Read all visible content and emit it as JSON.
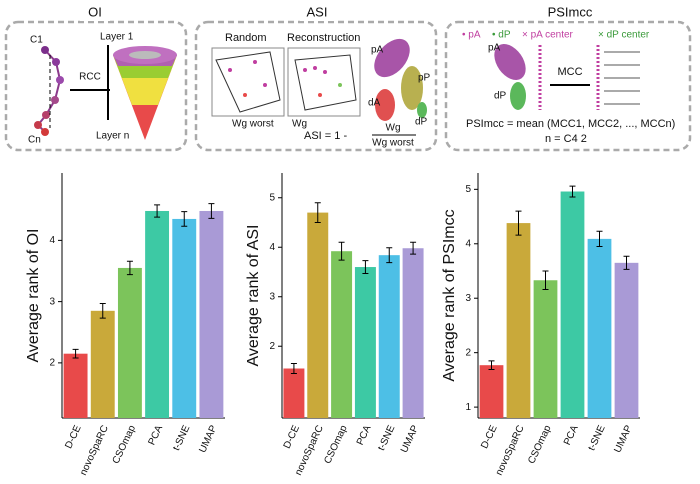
{
  "diagrams": {
    "oi": {
      "title": "OI",
      "start": "C1",
      "end": "Cn",
      "method": "RCC",
      "top_layer": "Layer 1",
      "bottom_layer": "Layer n"
    },
    "asi": {
      "title": "ASI",
      "random": "Random",
      "reconstruction": "Reconstruction",
      "pA": "pA",
      "dA": "dA",
      "pP": "pP",
      "dP": "dP",
      "w_random": "Wg worst",
      "w_recon": "Wg",
      "formula": "ASI = 1 -",
      "numerator": "Wg",
      "denominator": "Wg worst"
    },
    "psimcc": {
      "title": "PSImcc",
      "legend": [
        "• pA",
        "• dP",
        "× pA center",
        "× dP center"
      ],
      "pA": "pA",
      "dP": "dP",
      "method": "MCC",
      "formula": "PSImcc = mean (MCC1, MCC2, ..., MCCn)",
      "n_def": "n = C4 2"
    }
  },
  "chart_data": [
    {
      "type": "bar",
      "y_label": "Average rank of OI",
      "categories": [
        "D-CE",
        "novoSpaRC",
        "CSOmap",
        "PCA",
        "t-SNE",
        "UMAP"
      ],
      "values": [
        2.15,
        2.85,
        3.55,
        4.48,
        4.35,
        4.48
      ],
      "errors": [
        0.07,
        0.12,
        0.11,
        0.1,
        0.12,
        0.12
      ],
      "colors": [
        "#e84a4a",
        "#c9a93a",
        "#7cc45b",
        "#3dc9a4",
        "#4dbfe6",
        "#a99ad6"
      ],
      "ylim": [
        1.1,
        5.1
      ],
      "yticks": [
        2,
        3,
        4
      ]
    },
    {
      "type": "bar",
      "y_label": "Average rank of ASI",
      "categories": [
        "D-CE",
        "novoSpaRC",
        "CSOmap",
        "PCA",
        "t-SNE",
        "UMAP"
      ],
      "values": [
        1.55,
        4.7,
        3.92,
        3.6,
        3.84,
        3.98
      ],
      "errors": [
        0.1,
        0.2,
        0.18,
        0.13,
        0.15,
        0.12
      ],
      "colors": [
        "#e84a4a",
        "#c9a93a",
        "#7cc45b",
        "#3dc9a4",
        "#4dbfe6",
        "#a99ad6"
      ],
      "ylim": [
        0.55,
        5.5
      ],
      "yticks": [
        2,
        3,
        4,
        5
      ]
    },
    {
      "type": "bar",
      "y_label": "Average rank of PSImcc",
      "categories": [
        "D-CE",
        "novoSpaRC",
        "CSOmap",
        "PCA",
        "t-SNE",
        "UMAP"
      ],
      "values": [
        1.77,
        4.38,
        3.33,
        4.96,
        4.09,
        3.65
      ],
      "errors": [
        0.08,
        0.22,
        0.17,
        0.1,
        0.14,
        0.12
      ],
      "colors": [
        "#e84a4a",
        "#c9a93a",
        "#7cc45b",
        "#3dc9a4",
        "#4dbfe6",
        "#a99ad6"
      ],
      "ylim": [
        0.8,
        5.3
      ],
      "yticks": [
        1,
        2,
        3,
        4,
        5
      ]
    }
  ]
}
